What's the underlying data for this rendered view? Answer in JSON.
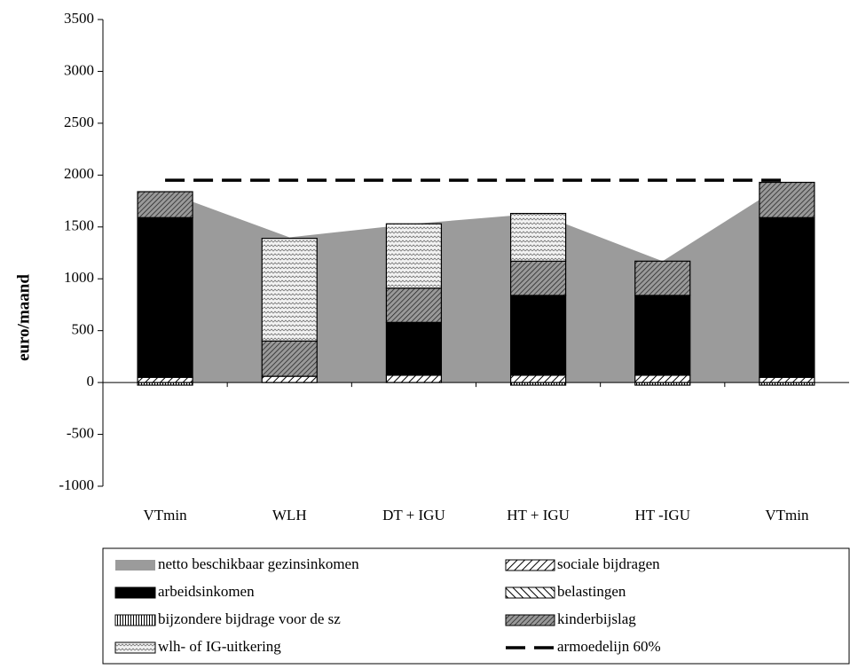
{
  "chart_data": {
    "type": "bar",
    "y_label": "euro/maand",
    "categories": [
      "VTmin",
      "WLH",
      "DT + IGU",
      "HT + IGU",
      "HT -IGU",
      "VTmin"
    ],
    "ylim": [
      -1000,
      3500
    ],
    "yticks": [
      -1000,
      -500,
      0,
      500,
      1000,
      1500,
      2000,
      2500,
      3000,
      3500
    ],
    "series": [
      {
        "name": "netto beschikbaar gezinsinkomen",
        "type": "area",
        "color": "#9b9b9b",
        "values": [
          1840,
          1400,
          1530,
          1630,
          1170,
          1930
        ]
      },
      {
        "name": "sociale bijdragen",
        "color": "#ffffff",
        "values": [
          50,
          60,
          70,
          70,
          70,
          50
        ]
      },
      {
        "name": "arbeidsinkomen",
        "color": "#000000",
        "values": [
          1540,
          null,
          510,
          770,
          770,
          1540
        ]
      },
      {
        "name": "belastingen",
        "color": "#ffffff",
        "values": [
          null,
          null,
          null,
          null,
          null,
          null
        ]
      },
      {
        "name": "bijzondere bijdrage voor de sz",
        "color": "#ffffff",
        "values": [
          -25,
          null,
          null,
          -25,
          -25,
          -25
        ]
      },
      {
        "name": "kinderbijslag",
        "color": "#808080",
        "values": [
          250,
          340,
          330,
          330,
          330,
          340
        ]
      },
      {
        "name": "wlh- of IG-uitkering",
        "color": "#d0d0d0",
        "values": [
          null,
          990,
          620,
          460,
          null,
          null
        ]
      },
      {
        "name": "armoedelijn 60%",
        "type": "line",
        "color": "#000000",
        "values": [
          1950,
          1950,
          1950,
          1950,
          1950,
          1950
        ]
      }
    ]
  }
}
